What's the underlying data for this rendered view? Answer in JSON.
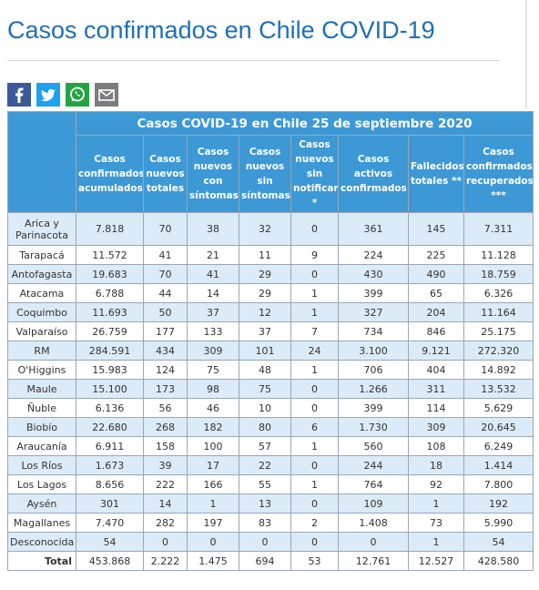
{
  "header": {
    "title": "Casos confirmados en Chile COVID-19"
  },
  "table": {
    "title": "Casos COVID-19 en Chile 25 de septiembre 2020",
    "columns": [
      "Casos confirmados acumulados",
      "Casos nuevos totales",
      "Casos nuevos con síntomas",
      "Casos nuevos sin síntomas",
      "Casos nuevos sin notificar *",
      "Casos activos confirmados",
      "Fallecidos totales **",
      "Casos confirmados recuperados ***"
    ],
    "rows": [
      [
        "Arica y Parinacota",
        "7.818",
        "70",
        "38",
        "32",
        "0",
        "361",
        "145",
        "7.311"
      ],
      [
        "Tarapacá",
        "11.572",
        "41",
        "21",
        "11",
        "9",
        "224",
        "225",
        "11.128"
      ],
      [
        "Antofagasta",
        "19.683",
        "70",
        "41",
        "29",
        "0",
        "430",
        "490",
        "18.759"
      ],
      [
        "Atacama",
        "6.788",
        "44",
        "14",
        "29",
        "1",
        "399",
        "65",
        "6.326"
      ],
      [
        "Coquimbo",
        "11.693",
        "50",
        "37",
        "12",
        "1",
        "327",
        "204",
        "11.164"
      ],
      [
        "Valparaíso",
        "26.759",
        "177",
        "133",
        "37",
        "7",
        "734",
        "846",
        "25.175"
      ],
      [
        "RM",
        "284.591",
        "434",
        "309",
        "101",
        "24",
        "3.100",
        "9.121",
        "272.320"
      ],
      [
        "O'Higgins",
        "15.983",
        "124",
        "75",
        "48",
        "1",
        "706",
        "404",
        "14.892"
      ],
      [
        "Maule",
        "15.100",
        "173",
        "98",
        "75",
        "0",
        "1.266",
        "311",
        "13.532"
      ],
      [
        "Ñuble",
        "6.136",
        "56",
        "46",
        "10",
        "0",
        "399",
        "114",
        "5.629"
      ],
      [
        "Biobío",
        "22.680",
        "268",
        "182",
        "80",
        "6",
        "1.730",
        "309",
        "20.645"
      ],
      [
        "Araucanía",
        "6.911",
        "158",
        "100",
        "57",
        "1",
        "560",
        "108",
        "6.249"
      ],
      [
        "Los Ríos",
        "1.673",
        "39",
        "17",
        "22",
        "0",
        "244",
        "18",
        "1.414"
      ],
      [
        "Los Lagos",
        "8.656",
        "222",
        "166",
        "55",
        "1",
        "764",
        "92",
        "7.800"
      ],
      [
        "Aysén",
        "301",
        "14",
        "1",
        "13",
        "0",
        "109",
        "1",
        "192"
      ],
      [
        "Magallanes",
        "7.470",
        "282",
        "197",
        "83",
        "2",
        "1.408",
        "73",
        "5.990"
      ],
      [
        "Desconocida",
        "54",
        "0",
        "0",
        "0",
        "0",
        "0",
        "1",
        "54"
      ]
    ],
    "total": [
      "Total",
      "453.868",
      "2.222",
      "1.475",
      "694",
      "53",
      "12.761",
      "12.527",
      "428.580"
    ]
  }
}
